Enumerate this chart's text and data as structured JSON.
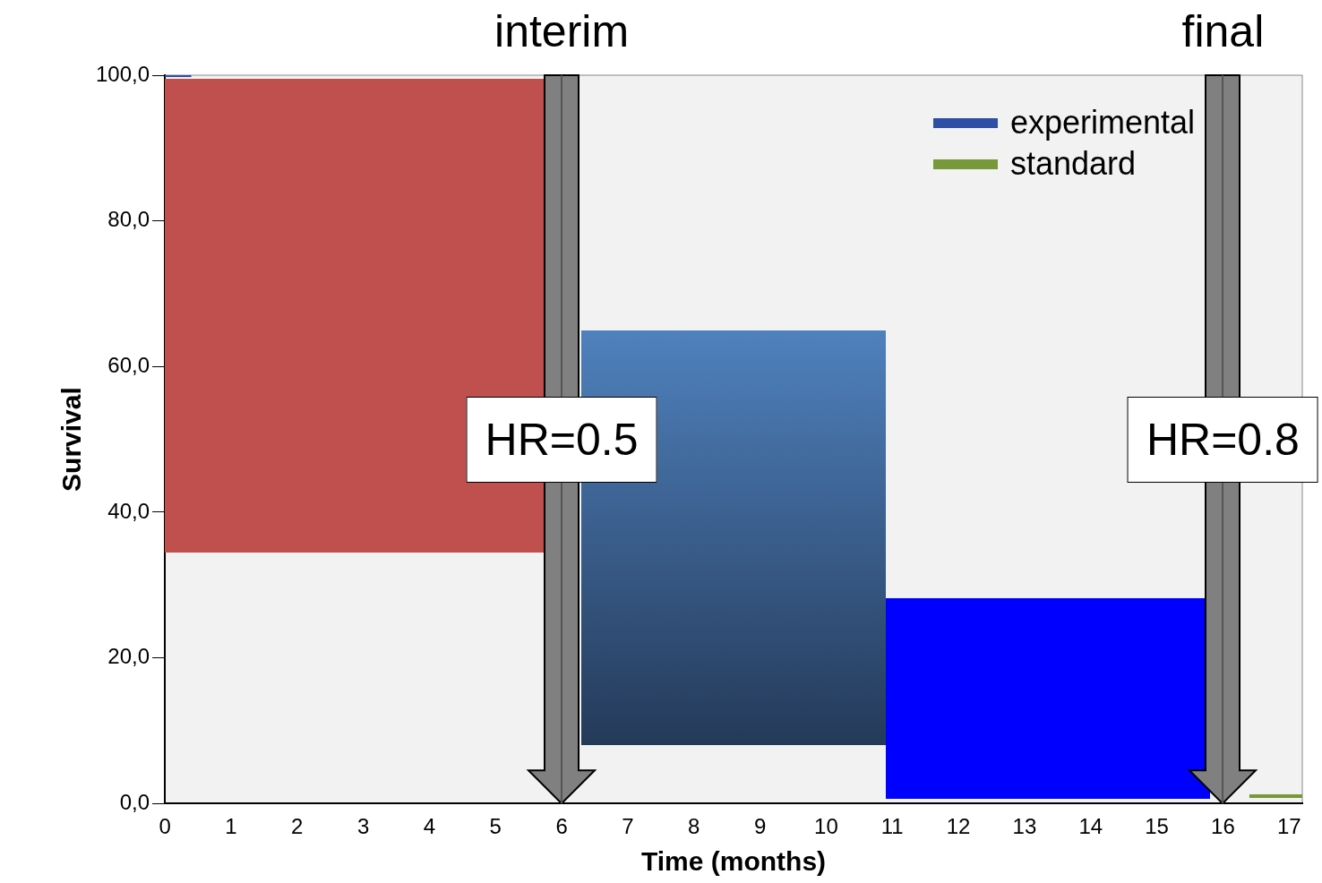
{
  "chart_data": {
    "type": "step",
    "xlabel": "Time (months)",
    "ylabel": "Survival",
    "xlim": [
      0,
      17.2
    ],
    "xticks": [
      0,
      1,
      2,
      3,
      4,
      5,
      6,
      7,
      8,
      9,
      10,
      11,
      12,
      13,
      14,
      15,
      16,
      17
    ],
    "ylim": [
      0,
      100
    ],
    "yticks": [
      {
        "value": 0,
        "label": "0,0"
      },
      {
        "value": 20,
        "label": "20,0"
      },
      {
        "value": 40,
        "label": "40,0"
      },
      {
        "value": 60,
        "label": "60,0"
      },
      {
        "value": 80,
        "label": "80,0"
      },
      {
        "value": 100,
        "label": "100,0"
      }
    ],
    "series": [
      {
        "name": "experimental",
        "color": "#2e4fa3",
        "x": [
          0,
          0.4
        ],
        "values": [
          100,
          100
        ]
      },
      {
        "name": "standard",
        "color": "#77993a",
        "x": [
          16.4,
          17.2
        ],
        "values": [
          1,
          1
        ]
      }
    ],
    "ref_lines": [
      {
        "axis": "x",
        "value": 6,
        "label": "interim"
      },
      {
        "axis": "x",
        "value": 16,
        "label": "final"
      }
    ],
    "annotations": [
      "HR=0.5",
      "HR=0.8"
    ],
    "legend": "top right",
    "grid": false
  }
}
